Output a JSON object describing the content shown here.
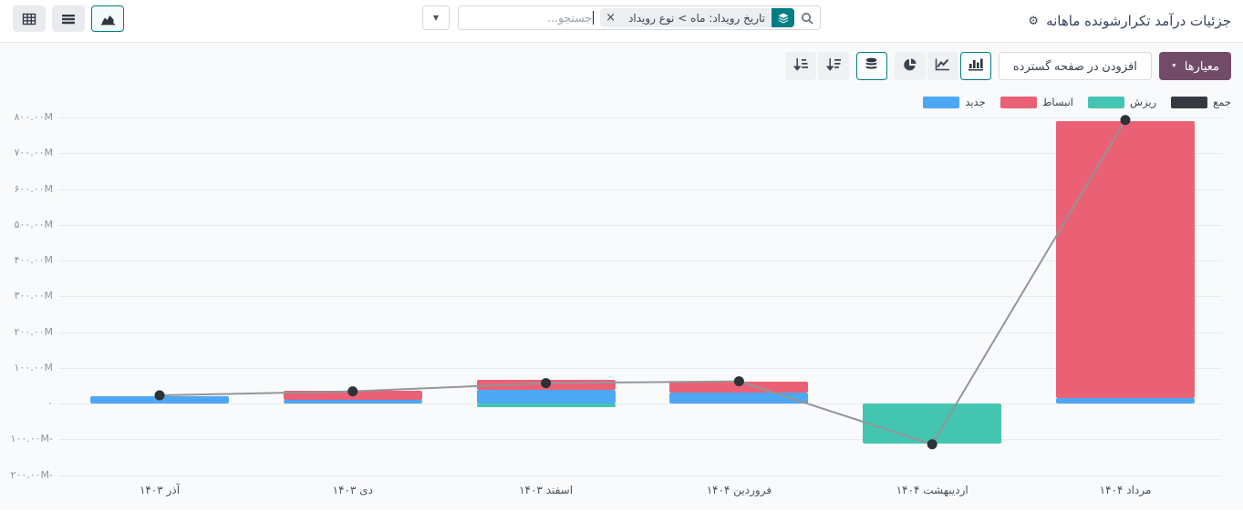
{
  "header": {
    "title": "جزئیات درآمد تکرارشونده ماهانه"
  },
  "icons": {
    "gear": "⚙",
    "caret_down": "▼",
    "close": "×"
  },
  "search": {
    "placeholder": "جستجو...",
    "facet_label": "تاریخ رویداد: ماه > نوع رویداد"
  },
  "toolbar": {
    "measures_label": "معیارها",
    "spreadsheet_label": "افزودن در صفحه گسترده"
  },
  "colors": {
    "new": "#4EA7F2",
    "expansion": "#EA6175",
    "churn": "#43C5B1",
    "total": "#343A40",
    "accent_teal": "#017E84",
    "primary_button": "#714B67",
    "line_stroke": "#939599",
    "dot_fill": "#2C3237"
  },
  "chart_data": {
    "type": "bar",
    "stacked": true,
    "title": "",
    "xlabel": "",
    "ylabel": "",
    "unit": "M",
    "values_in": "millions",
    "grid": true,
    "legend_position": "top-right",
    "ylim": [
      -200,
      800
    ],
    "categories": [
      "آذر ۱۴۰۳",
      "دی ۱۴۰۳",
      "اسفند ۱۴۰۳",
      "فروردین ۱۴۰۴",
      "اردیبهشت ۱۴۰۴",
      "مرداد ۱۴۰۴"
    ],
    "series": [
      {
        "key": "new",
        "name": "جدید",
        "type": "bar",
        "color": "#4EA7F2",
        "values": [
          20,
          10,
          38,
          30,
          0,
          15
        ]
      },
      {
        "key": "expansion",
        "name": "انبساط",
        "type": "bar",
        "color": "#EA6175",
        "values": [
          0,
          25,
          28,
          30,
          0,
          775
        ]
      },
      {
        "key": "churn",
        "name": "ریزش",
        "type": "bar",
        "color": "#43C5B1",
        "values": [
          0,
          0,
          -9,
          0,
          -112,
          0
        ]
      },
      {
        "key": "total",
        "name": "جمع",
        "type": "line",
        "color": "#343A40",
        "values": [
          23,
          34,
          57,
          62,
          -114,
          793
        ]
      }
    ],
    "legend": [
      {
        "key": "new",
        "label": "جدید",
        "color": "#4EA7F2"
      },
      {
        "key": "expansion",
        "label": "انبساط",
        "color": "#EA6175"
      },
      {
        "key": "churn",
        "label": "ریزش",
        "color": "#43C5B1"
      },
      {
        "key": "total",
        "label": "جمع",
        "color": "#343A40"
      }
    ],
    "y_ticks": [
      {
        "label": "۸۰۰.۰۰M",
        "value": 800
      },
      {
        "label": "۷۰۰.۰۰M",
        "value": 700
      },
      {
        "label": "۶۰۰.۰۰M",
        "value": 600
      },
      {
        "label": "۵۰۰.۰۰M",
        "value": 500
      },
      {
        "label": "۴۰۰.۰۰M",
        "value": 400
      },
      {
        "label": "۳۰۰.۰۰M",
        "value": 300
      },
      {
        "label": "۲۰۰.۰۰M",
        "value": 200
      },
      {
        "label": "۱۰۰.۰۰M",
        "value": 100
      },
      {
        "label": "۰",
        "value": 0
      },
      {
        "label": "۱۰۰.۰۰M-",
        "value": -100
      },
      {
        "label": "۲۰۰.۰۰M-",
        "value": -200
      }
    ]
  }
}
